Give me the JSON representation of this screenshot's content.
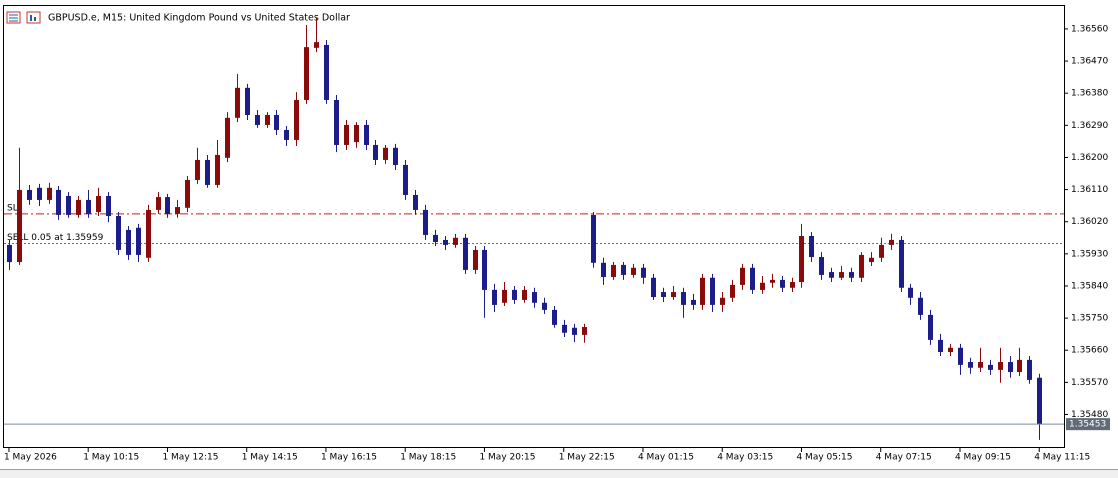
{
  "chart_data": {
    "type": "candlestick",
    "title": "GBPUSD.e, M15:  United Kingdom Pound vs United States Dollar",
    "up_color": "#8b0a0a",
    "down_color": "#1c1c8a",
    "open": [
      1.35955,
      1.35907,
      1.36109,
      1.36115,
      1.36081,
      1.36109,
      1.36092,
      1.36039,
      1.36081,
      1.36047,
      1.36092,
      1.36036,
      1.35997,
      1.36003,
      1.35919,
      1.36053,
      1.36089,
      1.36042,
      1.36059,
      1.36137,
      1.36193,
      1.36123,
      1.36199,
      1.36311,
      1.36395,
      1.36319,
      1.36291,
      1.36319,
      1.36277,
      1.36249,
      1.36361,
      1.36507,
      1.36515,
      1.36361,
      1.36235,
      1.36243,
      1.36291,
      1.36235,
      1.36193,
      1.36227,
      1.36179,
      1.36095,
      1.36053,
      1.35983,
      1.35969,
      1.35955,
      1.35975,
      1.35885,
      1.35941,
      1.35829,
      1.35793,
      1.35829,
      1.35801,
      1.35823,
      1.35793,
      1.35773,
      1.35731,
      1.35723,
      1.35703,
      1.36039,
      1.35905,
      1.35865,
      1.35899,
      1.35871,
      1.35891,
      1.35863,
      1.35823,
      1.35809,
      1.35823,
      1.35801,
      1.35787,
      1.35863,
      1.35787,
      1.35807,
      1.35843,
      1.35891,
      1.35829,
      1.35849,
      1.35857,
      1.35835,
      1.35851,
      1.3598,
      1.35921,
      1.35879,
      1.35863,
      1.35879,
      1.35863,
      1.35907,
      1.35919,
      1.35955,
      1.35969,
      1.35835,
      1.35807,
      1.35759,
      1.35689,
      1.35655,
      1.35667,
      1.35627,
      1.35611,
      1.35619,
      1.35605,
      1.35627,
      1.35599,
      1.35633,
      1.35583
    ],
    "high": [
      1.35969,
      1.36227,
      1.36123,
      1.36126,
      1.36129,
      1.3612,
      1.36103,
      1.36092,
      1.36109,
      1.36115,
      1.36103,
      1.36047,
      1.36008,
      1.36014,
      1.36067,
      1.36103,
      1.36098,
      1.36081,
      1.36148,
      1.36227,
      1.36207,
      1.36249,
      1.36327,
      1.36434,
      1.36406,
      1.36333,
      1.36327,
      1.36333,
      1.36288,
      1.36383,
      1.36571,
      1.36591,
      1.36529,
      1.36375,
      1.36305,
      1.36299,
      1.36305,
      1.36249,
      1.36235,
      1.36238,
      1.36193,
      1.36109,
      1.36067,
      1.35997,
      1.3598,
      1.35986,
      1.35986,
      1.35952,
      1.35952,
      1.35846,
      1.35851,
      1.3584,
      1.3584,
      1.35835,
      1.35807,
      1.35784,
      1.35745,
      1.35734,
      1.35734,
      1.36047,
      1.35919,
      1.35907,
      1.35907,
      1.35902,
      1.35902,
      1.35874,
      1.35835,
      1.3584,
      1.35835,
      1.35818,
      1.35874,
      1.35874,
      1.35823,
      1.35857,
      1.35902,
      1.35902,
      1.35868,
      1.35874,
      1.35868,
      1.35863,
      1.36014,
      1.35991,
      1.35935,
      1.35891,
      1.35896,
      1.35891,
      1.35935,
      1.35935,
      1.35975,
      1.35986,
      1.3598,
      1.35846,
      1.35823,
      1.35773,
      1.35706,
      1.35678,
      1.35678,
      1.35639,
      1.35667,
      1.35633,
      1.35667,
      1.35644,
      1.35667,
      1.35644,
      1.35594
    ],
    "low": [
      1.35885,
      1.35899,
      1.36067,
      1.36064,
      1.3607,
      1.36025,
      1.36031,
      1.36031,
      1.36031,
      1.36036,
      1.36019,
      1.35927,
      1.35913,
      1.35907,
      1.35907,
      1.36042,
      1.36031,
      1.36031,
      1.36047,
      1.36126,
      1.36115,
      1.36115,
      1.36187,
      1.36299,
      1.36305,
      1.36283,
      1.36283,
      1.36263,
      1.36232,
      1.36232,
      1.3635,
      1.36495,
      1.3635,
      1.36215,
      1.36221,
      1.36227,
      1.36221,
      1.36179,
      1.36182,
      1.36165,
      1.36081,
      1.36039,
      1.35969,
      1.35952,
      1.35941,
      1.35947,
      1.35874,
      1.35874,
      1.35751,
      1.35767,
      1.35784,
      1.3579,
      1.35793,
      1.35779,
      1.35762,
      1.35723,
      1.35697,
      1.35683,
      1.35681,
      1.35891,
      1.35843,
      1.35857,
      1.35857,
      1.35863,
      1.35846,
      1.35801,
      1.35795,
      1.35801,
      1.35751,
      1.35773,
      1.35773,
      1.35767,
      1.35767,
      1.35795,
      1.35829,
      1.35818,
      1.35818,
      1.35835,
      1.35823,
      1.35823,
      1.35835,
      1.35907,
      1.35857,
      1.35851,
      1.35857,
      1.35851,
      1.35851,
      1.35896,
      1.35907,
      1.35941,
      1.35823,
      1.35787,
      1.35745,
      1.35675,
      1.35644,
      1.35644,
      1.35591,
      1.35594,
      1.35599,
      1.35591,
      1.35569,
      1.35583,
      1.35588,
      1.35566,
      1.35409
    ],
    "close": [
      1.35907,
      1.36109,
      1.36081,
      1.36081,
      1.36115,
      1.36039,
      1.36039,
      1.36081,
      1.36042,
      1.36092,
      1.36036,
      1.35941,
      1.35927,
      1.35927,
      1.36053,
      1.36089,
      1.36042,
      1.36061,
      1.36137,
      1.36193,
      1.36123,
      1.36207,
      1.36311,
      1.36395,
      1.36319,
      1.36291,
      1.36319,
      1.36277,
      1.36249,
      1.36361,
      1.36509,
      1.36523,
      1.36361,
      1.36235,
      1.36291,
      1.36291,
      1.36235,
      1.36193,
      1.36227,
      1.36179,
      1.36095,
      1.36053,
      1.35983,
      1.35963,
      1.35955,
      1.35975,
      1.35885,
      1.35941,
      1.35829,
      1.35787,
      1.35829,
      1.35801,
      1.35829,
      1.35793,
      1.35773,
      1.35731,
      1.35709,
      1.35703,
      1.35725,
      1.35905,
      1.35865,
      1.35899,
      1.35871,
      1.35891,
      1.35863,
      1.35809,
      1.35809,
      1.35823,
      1.35787,
      1.35787,
      1.35863,
      1.35787,
      1.35807,
      1.35843,
      1.35891,
      1.35829,
      1.35849,
      1.35857,
      1.35835,
      1.35851,
      1.3598,
      1.35921,
      1.35871,
      1.35863,
      1.35879,
      1.35863,
      1.35927,
      1.35919,
      1.35955,
      1.35969,
      1.35835,
      1.35807,
      1.35759,
      1.35689,
      1.35655,
      1.35667,
      1.35619,
      1.35611,
      1.35627,
      1.35605,
      1.35627,
      1.35599,
      1.35633,
      1.35577,
      1.35453
    ],
    "xlim": [
      -0.5,
      106.5
    ],
    "xticks": [
      {
        "value": 0,
        "label": "1 May 2026"
      },
      {
        "value": 8,
        "label": "1 May 10:15"
      },
      {
        "value": 16,
        "label": "1 May 12:15"
      },
      {
        "value": 24,
        "label": "1 May 14:15"
      },
      {
        "value": 32,
        "label": "1 May 16:15"
      },
      {
        "value": 40,
        "label": "1 May 18:15"
      },
      {
        "value": 48,
        "label": "1 May 20:15"
      },
      {
        "value": 56,
        "label": "1 May 22:15"
      },
      {
        "value": 64,
        "label": "4 May 01:15"
      },
      {
        "value": 72,
        "label": "4 May 03:15"
      },
      {
        "value": 80,
        "label": "4 May 05:15"
      },
      {
        "value": 88,
        "label": "4 May 07:15"
      },
      {
        "value": 96,
        "label": "4 May 09:15"
      },
      {
        "value": 104,
        "label": "4 May 11:15"
      }
    ],
    "ylim": [
      1.35389,
      1.36627
    ],
    "yticks": [
      {
        "value": 1.3656,
        "label": "1.36560"
      },
      {
        "value": 1.3647,
        "label": "1.36470"
      },
      {
        "value": 1.3638,
        "label": "1.36380"
      },
      {
        "value": 1.3629,
        "label": "1.36290"
      },
      {
        "value": 1.362,
        "label": "1.36200"
      },
      {
        "value": 1.3611,
        "label": "1.36110"
      },
      {
        "value": 1.3602,
        "label": "1.36020"
      },
      {
        "value": 1.3593,
        "label": "1.35930"
      },
      {
        "value": 1.3584,
        "label": "1.35840"
      },
      {
        "value": 1.3575,
        "label": "1.35750"
      },
      {
        "value": 1.3566,
        "label": "1.35660"
      },
      {
        "value": 1.3557,
        "label": "1.35570"
      },
      {
        "value": 1.3548,
        "label": "1.35480"
      }
    ],
    "levels": [
      {
        "label": "SL",
        "value": 1.36042,
        "color": "#d01818",
        "style": "dashdot"
      },
      {
        "label": "SELL 0.05 at 1.35959",
        "value": 1.35959,
        "color": "#2ca02c",
        "style": "dotted"
      }
    ],
    "bid": {
      "value": 1.35453,
      "color": "#7a8a99"
    }
  }
}
